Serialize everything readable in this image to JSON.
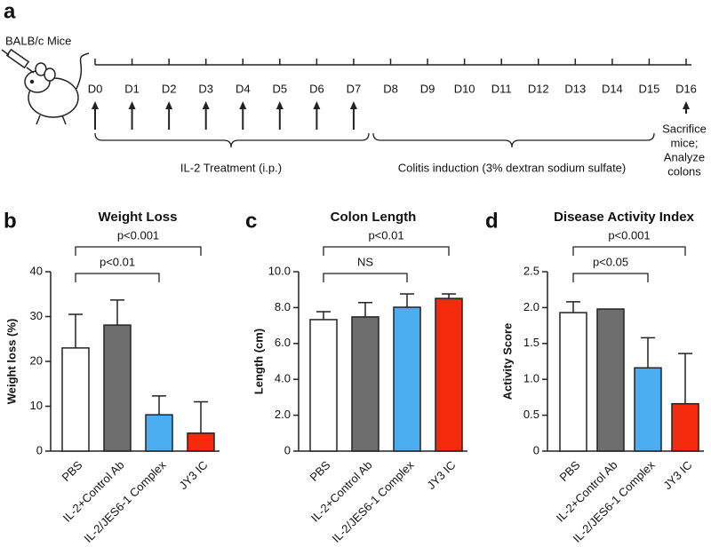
{
  "panel_labels": [
    "a",
    "b",
    "c",
    "d"
  ],
  "timeline": {
    "subject": "BALB/c Mice",
    "days": [
      "D0",
      "D1",
      "D2",
      "D3",
      "D4",
      "D5",
      "D6",
      "D7",
      "D8",
      "D9",
      "D10",
      "D11",
      "D12",
      "D13",
      "D14",
      "D15",
      "D16"
    ],
    "treatment": "IL-2 Treatment (i.p.)",
    "induction": "Colitis induction (3% dextran sodium sulfate)",
    "endpoint": [
      "Sacrifice",
      "mice;",
      "Analyze",
      "colons"
    ]
  },
  "chart_data": [
    {
      "type": "bar",
      "title": "Weight Loss",
      "y_label": "Weight loss (%)",
      "categories": [
        "PBS",
        "IL-2+Control Ab",
        "IL-2/JES6-1 Complex",
        "JY3 IC"
      ],
      "values": [
        23,
        28.1,
        8.1,
        4
      ],
      "errors": [
        7.5,
        5.6,
        4.2,
        7
      ],
      "colors": [
        "#ffffff",
        "#6e6e6e",
        "#4aaef0",
        "#f42a0c"
      ],
      "ylim": [
        0,
        40
      ],
      "yticks": [
        0,
        10,
        20,
        30,
        40
      ],
      "annotations": [
        "p<0.01",
        "p<0.001"
      ]
    },
    {
      "type": "bar",
      "title": "Colon Length",
      "y_label": "Length (cm)",
      "categories": [
        "PBS",
        "IL-2+Control Ab",
        "IL-2/JES6-1 Complex",
        "JY3 IC"
      ],
      "values": [
        7.33,
        7.48,
        8.02,
        8.51
      ],
      "errors": [
        0.44,
        0.8,
        0.74,
        0.25
      ],
      "colors": [
        "#ffffff",
        "#6e6e6e",
        "#4aaef0",
        "#f42a0c"
      ],
      "ylim": [
        0,
        10
      ],
      "yticks": [
        0,
        {
          "value": 2,
          "label": "2.0"
        },
        {
          "value": 4,
          "label": "4.0"
        },
        {
          "value": 6,
          "label": "6.0"
        },
        {
          "value": 8,
          "label": "8.0"
        },
        {
          "value": 10,
          "label": "10.0"
        }
      ],
      "annotations": [
        "NS",
        "p<0.01"
      ]
    },
    {
      "type": "bar",
      "title": "Disease Activity Index",
      "y_label": "Activity Score",
      "categories": [
        "PBS",
        "IL-2+Control Ab",
        "IL-2/JES6-1 Complex",
        "JY3 IC"
      ],
      "values": [
        1.93,
        1.98,
        1.16,
        0.66
      ],
      "errors": [
        0.15,
        null,
        0.42,
        0.7
      ],
      "colors": [
        "#ffffff",
        "#6e6e6e",
        "#4aaef0",
        "#f42a0c"
      ],
      "ylim": [
        0,
        2.5
      ],
      "yticks": [
        0,
        0.5,
        {
          "value": 1,
          "label": "1.0"
        },
        1.5,
        {
          "value": 2,
          "label": "2.0"
        },
        2.5
      ],
      "annotations": [
        "p<0.05",
        "p<0.001"
      ]
    }
  ]
}
